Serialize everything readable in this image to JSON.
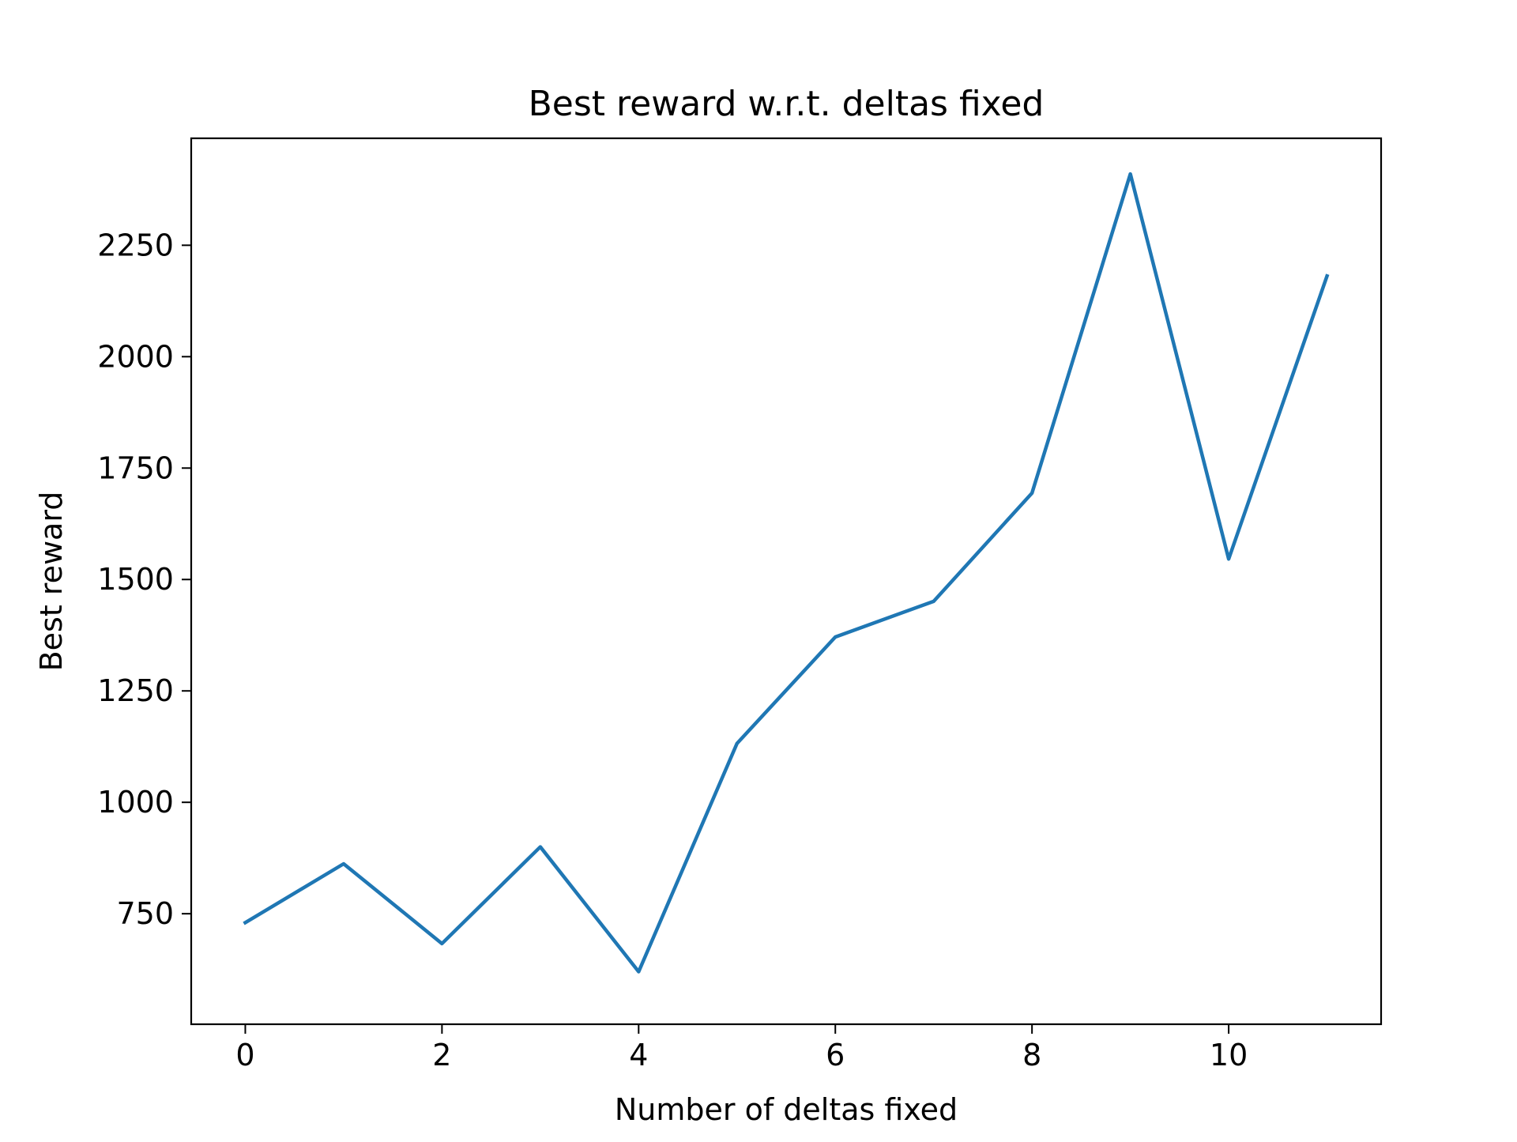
{
  "chart_data": {
    "type": "line",
    "title": "Best reward w.r.t. deltas fixed",
    "xlabel": "Number of deltas fixed",
    "ylabel": "Best reward",
    "x": [
      0,
      1,
      2,
      3,
      4,
      5,
      6,
      7,
      8,
      9,
      10,
      11
    ],
    "series": [
      {
        "values": [
          730,
          862,
          683,
          900,
          620,
          1132,
          1371,
          1451,
          1694,
          2410,
          1546,
          2181
        ],
        "color": "#1f77b4"
      }
    ],
    "xlim": [
      -0.55,
      11.55
    ],
    "ylim": [
      502,
      2490
    ],
    "xticks": [
      0,
      2,
      4,
      6,
      8,
      10
    ],
    "yticks": [
      750,
      1000,
      1250,
      1500,
      1750,
      2000,
      2250
    ],
    "grid": false,
    "legend": "none"
  }
}
